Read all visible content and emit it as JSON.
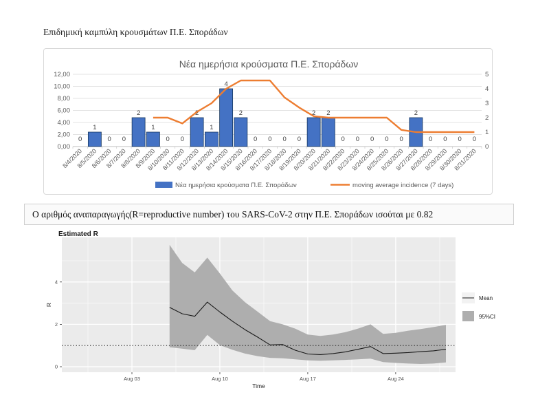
{
  "page": {
    "header": "Επιδημική καμπύλη κρουσμάτων Π.Ε. Σποράδων"
  },
  "banner": {
    "text": "Ο αριθμός αναπαραγωγής(R=reproductive number) του SARS-CoV-2 στην Π.Ε. Σποράδων ισούται με 0.82"
  },
  "chart_data": [
    {
      "type": "bar",
      "title": "Νέα ημερήσια κρούσματα Π.Ε. Σποράδων",
      "legend_position": "bottom",
      "grid": true,
      "colors": {
        "bar": "#4472C4",
        "bar_border": "#17375E",
        "line": "#ED7D31",
        "grid": "#e3e3e3",
        "axis": "#bfbfbf",
        "text": "#595959",
        "label": "#404040",
        "title": "#595959"
      },
      "categories": [
        "8/4/2020",
        "8/5/2020",
        "8/6/2020",
        "8/7/2020",
        "8/8/2020",
        "8/9/2020",
        "8/10/2020",
        "8/11/2020",
        "8/12/2020",
        "8/13/2020",
        "8/14/2020",
        "8/15/2020",
        "8/16/2020",
        "8/17/2020",
        "8/18/2020",
        "8/19/2020",
        "8/20/2020",
        "8/21/2020",
        "8/22/2020",
        "8/23/2020",
        "8/24/2020",
        "8/25/2020",
        "8/26/2020",
        "8/27/2020",
        "8/28/2020",
        "8/29/2020",
        "8/30/2020",
        "8/31/2020"
      ],
      "left_axis": {
        "min": 0,
        "max": 12,
        "ticks": [
          "0,00",
          "2,00",
          "4,00",
          "6,00",
          "8,00",
          "10,00",
          "12,00"
        ]
      },
      "right_axis": {
        "min": 0,
        "max": 5,
        "ticks": [
          "0",
          "1",
          "2",
          "3",
          "4",
          "5"
        ]
      },
      "series": [
        {
          "name": "Νέα ημερήσια κρούσματα Π.Ε. Σποράδων",
          "kind": "bar",
          "axis": "right",
          "values": [
            0,
            1,
            0,
            0,
            2,
            1,
            0,
            0,
            2,
            1,
            4,
            2,
            0,
            0,
            0,
            0,
            2,
            2,
            0,
            0,
            0,
            0,
            0,
            2,
            0,
            0,
            0,
            0
          ],
          "data_labels": [
            "0",
            "1",
            "0",
            "0",
            "2",
            "1",
            "0",
            "0",
            "2",
            "1",
            "4",
            "2",
            "0",
            "0",
            "0",
            "0",
            "2",
            "2",
            "0",
            "0",
            "0",
            "0",
            "0",
            "2",
            "0",
            "0",
            "0",
            "0"
          ]
        },
        {
          "name": "moving average incidence (7 days)",
          "kind": "line",
          "axis": "right",
          "values": [
            null,
            null,
            null,
            null,
            null,
            2,
            2,
            1.6,
            2.4,
            3,
            4,
            4.57,
            4.57,
            4.57,
            3.4,
            2.7,
            2.1,
            2,
            2,
            2,
            2,
            2,
            1.15,
            1,
            1,
            1,
            1,
            1
          ]
        }
      ]
    },
    {
      "type": "line",
      "title": "Estimated R",
      "xlabel": "Time",
      "ylabel": "R",
      "grid": true,
      "plot_bg": "#ebebeb",
      "colors": {
        "mean_line": "#1a1a1a",
        "band": "#aeaeae",
        "gridline": "#ffffff",
        "tick_text": "#4d4d4d",
        "hline": "#333333"
      },
      "ylim": [
        -0.26,
        6.1
      ],
      "y_ticks": [
        "0",
        "2",
        "4"
      ],
      "x_ticks": [
        "Aug 03",
        "Aug 10",
        "Aug 17",
        "Aug 24"
      ],
      "x_tick_days": [
        3,
        10,
        17,
        24
      ],
      "hline_at": 1,
      "legend": {
        "entries": [
          "Mean",
          "95%CI"
        ]
      },
      "x_days": [
        6,
        7,
        8,
        9,
        10,
        11,
        12,
        13,
        14,
        15,
        16,
        17,
        18,
        19,
        20,
        21,
        22,
        23,
        24,
        25,
        26,
        27,
        28
      ],
      "series": [
        {
          "name": "Mean",
          "values": [
            2.8,
            2.5,
            2.38,
            3.05,
            2.58,
            2.15,
            1.75,
            1.4,
            1.03,
            1.05,
            0.78,
            0.6,
            0.57,
            0.62,
            0.7,
            0.82,
            0.95,
            0.62,
            0.64,
            0.67,
            0.71,
            0.75,
            0.82
          ]
        }
      ],
      "band": {
        "name": "95%CI",
        "upper": [
          5.75,
          4.9,
          4.45,
          5.15,
          4.4,
          3.6,
          3.05,
          2.6,
          2.15,
          2.0,
          1.8,
          1.52,
          1.45,
          1.52,
          1.63,
          1.8,
          2.0,
          1.55,
          1.6,
          1.7,
          1.78,
          1.87,
          1.97
        ],
        "lower": [
          0.92,
          0.85,
          0.78,
          1.5,
          1.02,
          0.8,
          0.62,
          0.5,
          0.42,
          0.4,
          0.35,
          0.3,
          0.28,
          0.3,
          0.32,
          0.35,
          0.38,
          0.22,
          0.18,
          0.15,
          0.13,
          0.15,
          0.2
        ]
      }
    }
  ]
}
